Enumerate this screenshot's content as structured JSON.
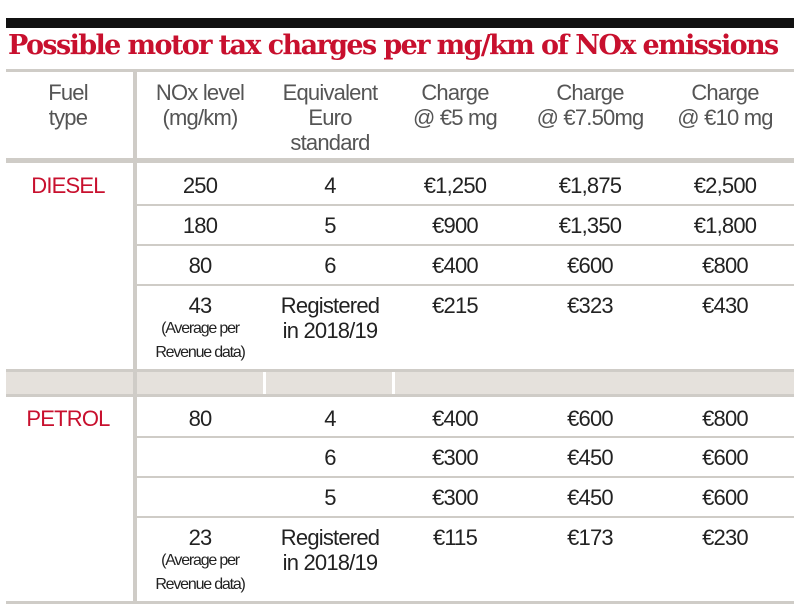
{
  "title": "Possible motor tax charges per mg/km of NOx emissions",
  "headers": [
    "Fuel type",
    "NOx level (mg/km)",
    "Equivalent Euro standard",
    "Charge @ €5 mg",
    "Charge @ €7.50mg",
    "Charge @ €10 mg"
  ],
  "header_lines": [
    [
      "Fuel",
      "type"
    ],
    [
      "NOx level",
      "(mg/km)"
    ],
    [
      "Equivalent",
      "Euro",
      "standard"
    ],
    [
      "Charge",
      "@ €5 mg"
    ],
    [
      "Charge",
      "@ €7.50mg"
    ],
    [
      "Charge",
      "@ €10 mg"
    ]
  ],
  "colors": {
    "accent": "#c8102e",
    "rule": "#cfccc7",
    "band": "#e5e1dc"
  },
  "chart_data": {
    "type": "table",
    "title": "Possible motor tax charges per mg/km of NOx emissions",
    "columns": [
      "Fuel type",
      "NOx level (mg/km)",
      "Equivalent Euro standard",
      "Charge @ €5 mg",
      "Charge @ €7.50mg",
      "Charge @ €10 mg"
    ],
    "sections": [
      {
        "fuel": "DIESEL",
        "rows": [
          {
            "nox": "250",
            "euro": "4",
            "c5": "€1,250",
            "c75": "€1,875",
            "c10": "€2,500"
          },
          {
            "nox": "180",
            "euro": "5",
            "c5": "€900",
            "c75": "€1,350",
            "c10": "€1,800"
          },
          {
            "nox": "80",
            "euro": "6",
            "c5": "€400",
            "c75": "€600",
            "c10": "€800"
          },
          {
            "nox": "43",
            "nox_note": [
              "(Average per",
              "Revenue data)"
            ],
            "euro": "",
            "euro_lines": [
              "Registered",
              "in 2018/19"
            ],
            "c5": "€215",
            "c75": "€323",
            "c10": "€430"
          }
        ]
      },
      {
        "fuel": "PETROL",
        "rows": [
          {
            "nox": "80",
            "euro": "4",
            "c5": "€400",
            "c75": "€600",
            "c10": "€800"
          },
          {
            "nox": "",
            "euro": "6",
            "c5": "€300",
            "c75": "€450",
            "c10": "€600"
          },
          {
            "nox": "",
            "euro": "5",
            "c5": "€300",
            "c75": "€450",
            "c10": "€600"
          },
          {
            "nox": "23",
            "nox_note": [
              "(Average per",
              "Revenue data)"
            ],
            "euro": "",
            "euro_lines": [
              "Registered",
              "in 2018/19"
            ],
            "c5": "€115",
            "c75": "€173",
            "c10": "€230"
          }
        ]
      }
    ]
  }
}
